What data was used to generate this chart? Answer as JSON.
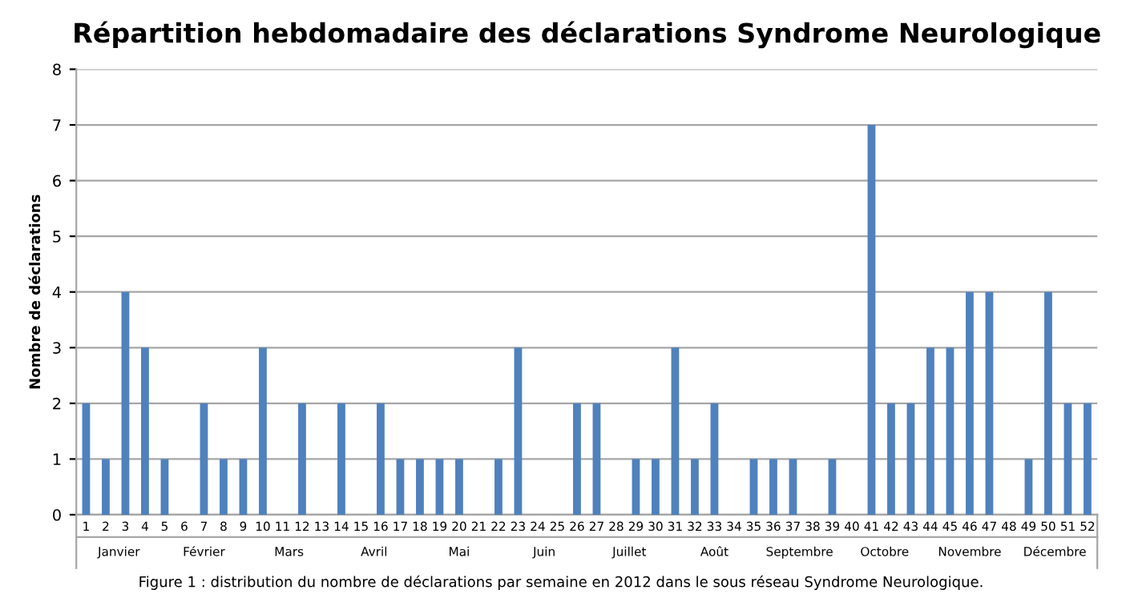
{
  "chart_data": {
    "type": "bar",
    "title": "Répartition hebdomadaire des déclarations Syndrome Neurologique",
    "ylabel": "Nombre de déclarations",
    "categories": [
      "1",
      "2",
      "3",
      "4",
      "5",
      "6",
      "7",
      "8",
      "9",
      "10",
      "11",
      "12",
      "13",
      "14",
      "15",
      "16",
      "17",
      "18",
      "19",
      "20",
      "21",
      "22",
      "23",
      "24",
      "25",
      "26",
      "27",
      "28",
      "29",
      "30",
      "31",
      "32",
      "33",
      "34",
      "35",
      "36",
      "37",
      "38",
      "39",
      "40",
      "41",
      "42",
      "43",
      "44",
      "45",
      "46",
      "47",
      "48",
      "49",
      "50",
      "51",
      "52"
    ],
    "values": [
      2,
      1,
      4,
      3,
      1,
      0,
      2,
      1,
      1,
      3,
      0,
      2,
      0,
      2,
      0,
      2,
      1,
      1,
      1,
      1,
      0,
      1,
      3,
      0,
      0,
      2,
      2,
      0,
      1,
      1,
      3,
      1,
      2,
      0,
      1,
      1,
      1,
      0,
      1,
      0,
      7,
      2,
      2,
      3,
      3,
      4,
      4,
      0,
      1,
      4,
      2,
      2
    ],
    "color": "#4f81bd",
    "ylim": [
      0,
      8
    ],
    "yticks": [
      0,
      1,
      2,
      3,
      4,
      5,
      6,
      7,
      8
    ],
    "grid": "y",
    "annotations": [
      "Janvier",
      "Février",
      "Mars",
      "Avril",
      "Mai",
      "Juin",
      "Juillet",
      "Août",
      "Septembre",
      "Octobre",
      "Novembre",
      "Décembre",
      "Figure 1 : distribution du nombre de déclarations par semaine en 2012 dans le sous réseau Syndrome Neurologique."
    ]
  }
}
